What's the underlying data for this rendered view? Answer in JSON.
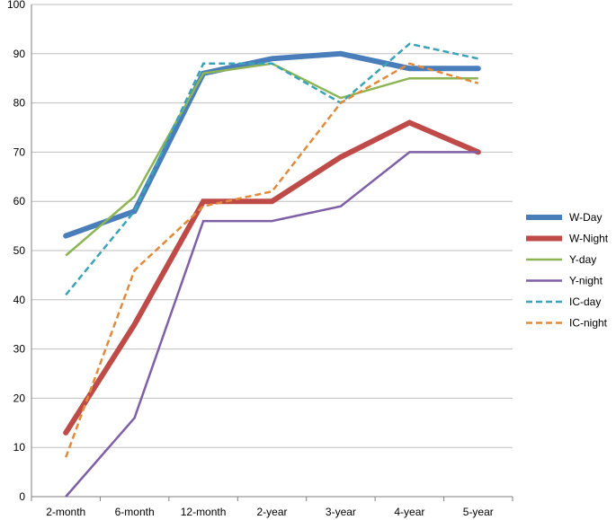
{
  "chart_data": {
    "type": "line",
    "title": "",
    "xlabel": "",
    "ylabel": "",
    "categories": [
      "2-month",
      "6-month",
      "12-month",
      "2-year",
      "3-year",
      "4-year",
      "5-year"
    ],
    "ylim": [
      0,
      100
    ],
    "yticks": [
      0,
      10,
      20,
      30,
      40,
      50,
      60,
      70,
      80,
      90,
      100
    ],
    "grid": "horizontal",
    "legend_position": "right",
    "series": [
      {
        "name": "W-Day",
        "values": [
          53,
          58,
          86,
          89,
          90,
          87,
          87
        ],
        "color": "#4a7ebb",
        "style": "solid-thick"
      },
      {
        "name": "W-Night",
        "values": [
          13,
          35,
          60,
          60,
          69,
          76,
          70
        ],
        "color": "#be4b48",
        "style": "solid-thick"
      },
      {
        "name": "Y-day",
        "values": [
          49,
          61,
          86,
          88,
          81,
          85,
          85
        ],
        "color": "#8db555",
        "style": "solid"
      },
      {
        "name": "Y-night",
        "values": [
          0,
          16,
          56,
          56,
          59,
          70,
          70
        ],
        "color": "#7f5fa5",
        "style": "solid"
      },
      {
        "name": "IC-day",
        "values": [
          41,
          58,
          88,
          88,
          80,
          92,
          89
        ],
        "color": "#3ba3b7",
        "style": "dashed"
      },
      {
        "name": "IC-night",
        "values": [
          8,
          46,
          59,
          62,
          80,
          88,
          84
        ],
        "color": "#e28a3c",
        "style": "dashed"
      }
    ]
  }
}
